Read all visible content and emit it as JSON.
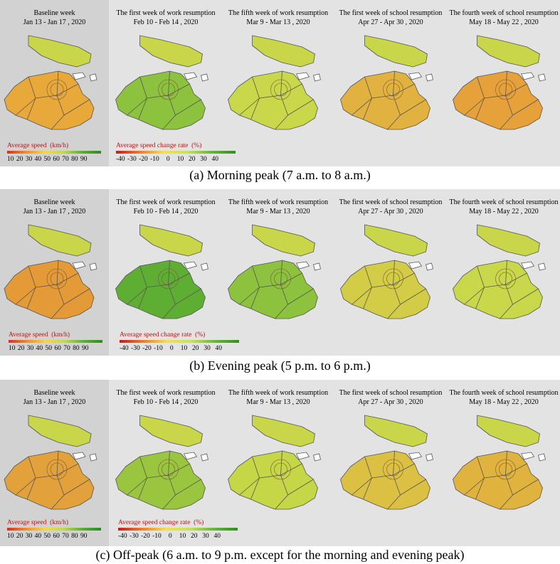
{
  "rows": [
    {
      "caption": "(a)  Morning peak (7 a.m. to 8 a.m.)",
      "panels": [
        {
          "title": "Baseline week",
          "dates": "Jan 13 - Jan 17 , 2020"
        },
        {
          "title": "The first week of work resumption",
          "dates": "Feb 10 - Feb 14 , 2020"
        },
        {
          "title": "The fifth week of work resumption",
          "dates": "Mar 9 - Mar 13 , 2020"
        },
        {
          "title": "The first week of school resumption",
          "dates": "Apr 27 - Apr 30 , 2020"
        },
        {
          "title": "The fourth week of school resumption",
          "dates": "May 18 - May 22 , 2020"
        }
      ],
      "legend_speed": {
        "title": "Average speed  (km/h)",
        "ticks": "10 20 30 40 50 60 70 80 90"
      },
      "legend_change": {
        "title": "Average speed change rate  (%)",
        "ticks": "-40 -30 -20 -10   0   10  20  30  40"
      }
    },
    {
      "caption": "(b)  Evening peak (5 p.m. to 6 p.m.)",
      "panels": [
        {
          "title": "Baseline week",
          "dates": "Jan 13 - Jan 17 , 2020"
        },
        {
          "title": "The first week of work resumption",
          "dates": "Feb 10 - Feb 14 , 2020"
        },
        {
          "title": "The fifth week of work resumption",
          "dates": "Mar 9 - Mar 13 , 2020"
        },
        {
          "title": "The first week of school resumption",
          "dates": "Apr 27 - Apr 30 , 2020"
        },
        {
          "title": "The fourth week of school resumption",
          "dates": "May 18 - May 22 , 2020"
        }
      ],
      "legend_speed": {
        "title": "Average speed  (km/h)",
        "ticks": "10 20 30 40 50 60 70 80 90"
      },
      "legend_change": {
        "title": "Average speed change rate  (%)",
        "ticks": "-40 -30 -20 -10   0   10  20  30  40"
      }
    },
    {
      "caption": "(c) Off-peak (6 a.m. to 9 p.m. except for the morning and evening peak)",
      "panels": [
        {
          "title": "Baseline week",
          "dates": "Jan 13 - Jan 17 , 2020"
        },
        {
          "title": "The first week of work resumption",
          "dates": "Feb 10 - Feb 14 , 2020"
        },
        {
          "title": "The fifth week of work resumption",
          "dates": "Mar 9 - Mar 13 , 2020"
        },
        {
          "title": "The first week of school resumption",
          "dates": "Apr 27 - Apr 30 , 2020"
        },
        {
          "title": "The fourth week of school resumption",
          "dates": "May 18 - May 22 , 2020"
        }
      ],
      "legend_speed": {
        "title": "Average speed  (km/h)",
        "ticks": "10 20 30 40 50 60 70 80 90"
      },
      "legend_change": {
        "title": "Average speed change rate  (%)",
        "ticks": "-40 -30 -20 -10   0   10  20  30  40"
      }
    }
  ],
  "map_colors": {
    "row0": [
      "#e9a93a",
      "#8cc23e",
      "#c9d84a",
      "#e2b240",
      "#e6a13a"
    ],
    "row1": [
      "#e49a36",
      "#5fae34",
      "#8cc23e",
      "#d2cc46",
      "#c9d84a"
    ],
    "row2": [
      "#e3a13b",
      "#9ac63f",
      "#c5d647",
      "#dcc043",
      "#e0b33f"
    ],
    "outline": "#555555",
    "island": "#c9d64a"
  }
}
